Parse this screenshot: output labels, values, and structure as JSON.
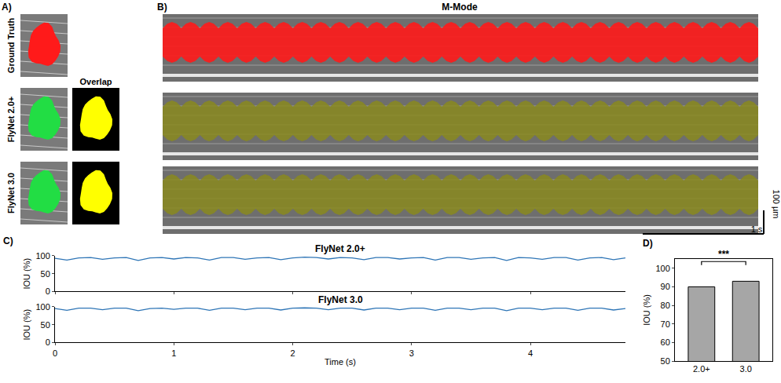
{
  "image_panels": {
    "A": {
      "label": "A)",
      "rows": [
        "Ground Truth",
        "FlyNet 2.0+",
        "FlyNet 3.0"
      ],
      "overlap_title": "Overlap"
    },
    "B": {
      "label": "B)",
      "title": "M-Mode",
      "scale_bar": {
        "vertical": "100 µm",
        "horizontal": "1 s"
      }
    }
  },
  "chart_data": [
    {
      "type": "line",
      "panel_label": "C)",
      "title": "FlyNet 2.0+",
      "y_label": "IOU (%)",
      "x": [
        0,
        0.1,
        0.2,
        0.3,
        0.4,
        0.5,
        0.6,
        0.7,
        0.8,
        0.9,
        1,
        1.1,
        1.2,
        1.3,
        1.4,
        1.5,
        1.6,
        1.7,
        1.8,
        1.9,
        2,
        2.1,
        2.2,
        2.3,
        2.4,
        2.5,
        2.6,
        2.7,
        2.8,
        2.9,
        3,
        3.1,
        3.2,
        3.3,
        3.4,
        3.5,
        3.6,
        3.7,
        3.8,
        3.9,
        4,
        4.1,
        4.2,
        4.3,
        4.4,
        4.5,
        4.6,
        4.7,
        4.8
      ],
      "values": [
        93,
        88,
        94,
        95,
        90,
        94,
        95,
        87,
        94,
        95,
        91,
        95,
        94,
        88,
        95,
        95,
        90,
        94,
        95,
        89,
        94,
        96,
        95,
        91,
        95,
        94,
        89,
        95,
        95,
        91,
        94,
        95,
        88,
        95,
        95,
        90,
        94,
        95,
        87,
        95,
        94,
        90,
        95,
        95,
        88,
        94,
        95,
        89,
        94
      ],
      "color": "#2e75b6",
      "xlim": [
        0,
        4.8
      ],
      "xticks": [
        0,
        1,
        2,
        3,
        4
      ],
      "ylim": [
        0,
        100
      ],
      "yticks": [
        0,
        50,
        100
      ],
      "tick_labels": "y"
    },
    {
      "type": "line",
      "title": "FlyNet 3.0",
      "y_label": "IOU (%)",
      "x_label": "Time (s)",
      "x": [
        0,
        0.1,
        0.2,
        0.3,
        0.4,
        0.5,
        0.6,
        0.7,
        0.8,
        0.9,
        1,
        1.1,
        1.2,
        1.3,
        1.4,
        1.5,
        1.6,
        1.7,
        1.8,
        1.9,
        2,
        2.1,
        2.2,
        2.3,
        2.4,
        2.5,
        2.6,
        2.7,
        2.8,
        2.9,
        3,
        3.1,
        3.2,
        3.3,
        3.4,
        3.5,
        3.6,
        3.7,
        3.8,
        3.9,
        4,
        4.1,
        4.2,
        4.3,
        4.4,
        4.5,
        4.6,
        4.7,
        4.8
      ],
      "values": [
        95,
        90,
        96,
        96,
        92,
        96,
        96,
        89,
        95,
        96,
        93,
        96,
        96,
        90,
        96,
        96,
        92,
        96,
        96,
        91,
        96,
        97,
        96,
        92,
        96,
        96,
        91,
        96,
        96,
        92,
        96,
        96,
        90,
        96,
        96,
        92,
        96,
        96,
        89,
        96,
        96,
        92,
        96,
        96,
        90,
        96,
        96,
        91,
        95
      ],
      "color": "#2e75b6",
      "xlim": [
        0,
        4.8
      ],
      "xticks": [
        0,
        1,
        2,
        3,
        4
      ],
      "ylim": [
        0,
        100
      ],
      "yticks": [
        0,
        50,
        100
      ]
    },
    {
      "type": "bar",
      "panel_label": "D)",
      "y_label": "IOU (%)",
      "categories": [
        "2.0+",
        "3.0"
      ],
      "values": [
        90,
        93
      ],
      "color": "#a6a6a6",
      "ylim": [
        50,
        105
      ],
      "yticks": [
        50,
        60,
        70,
        80,
        90,
        100
      ],
      "annotations": [
        {
          "text": "***",
          "between": [
            "2.0+",
            "3.0"
          ]
        }
      ]
    }
  ]
}
